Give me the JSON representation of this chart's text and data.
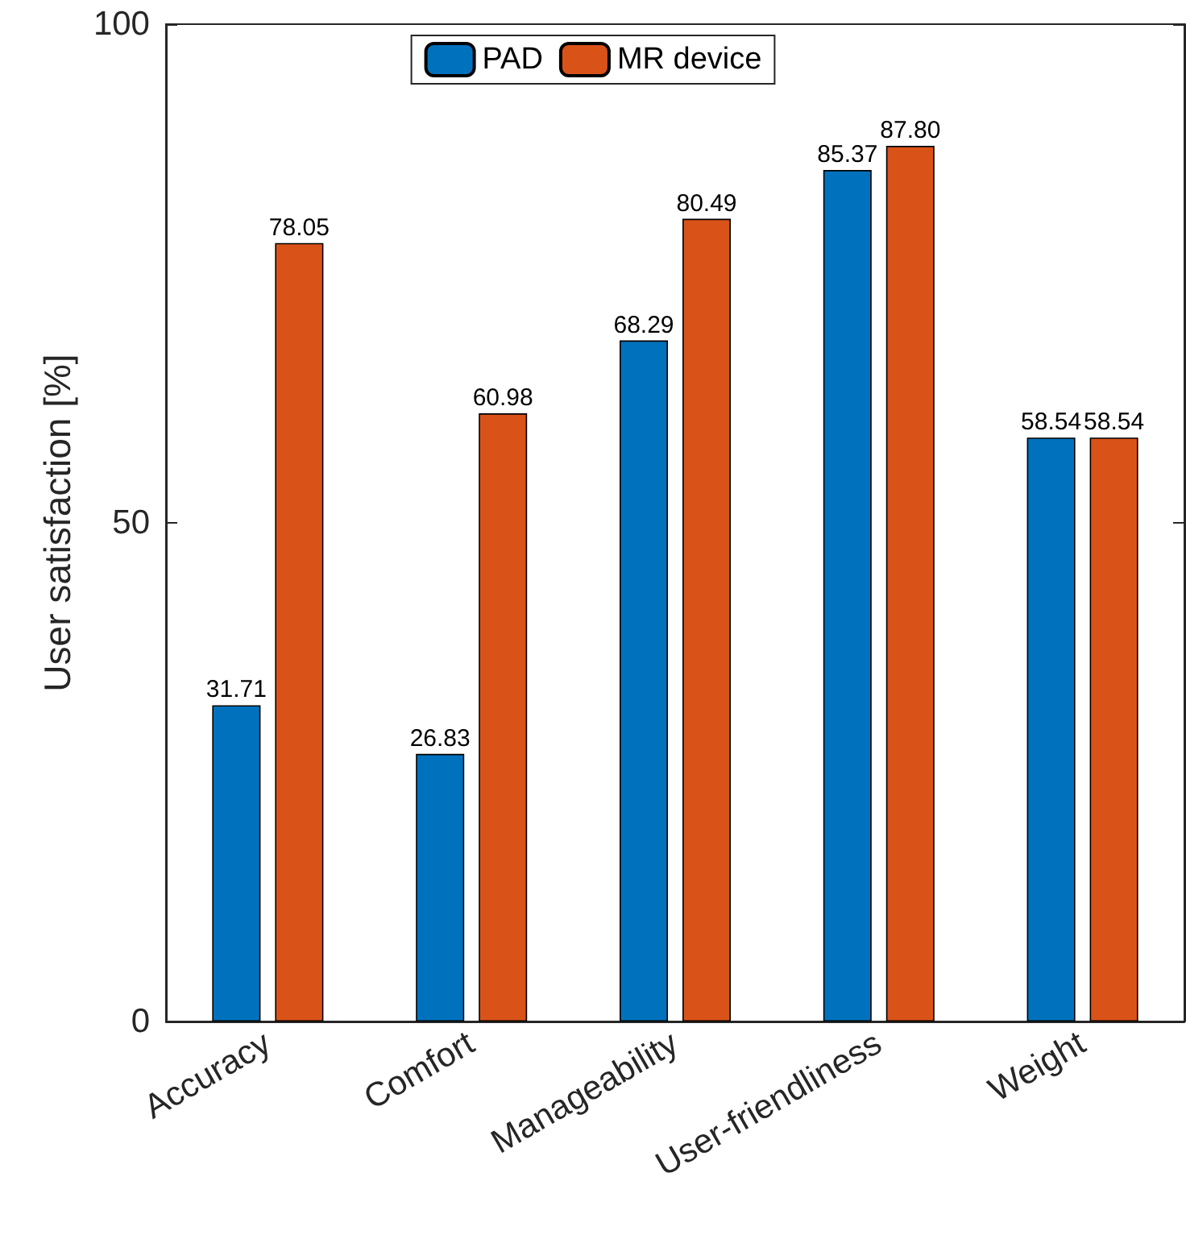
{
  "chart_data": {
    "type": "bar",
    "ylabel": "User satisfaction [%]",
    "categories": [
      "Accuracy",
      "Comfort",
      "Manageability",
      "User-friendliness",
      "Weight"
    ],
    "series": [
      {
        "name": "PAD",
        "color": "#0072bd",
        "values": [
          31.71,
          26.83,
          68.29,
          85.37,
          58.54
        ],
        "value_labels": [
          "31.71",
          "26.83",
          "68.29",
          "85.37",
          "58.54"
        ]
      },
      {
        "name": "MR device",
        "color": "#d95319",
        "values": [
          78.05,
          60.98,
          80.49,
          87.8,
          58.54
        ],
        "value_labels": [
          "78.05",
          "60.98",
          "80.49",
          "87.80",
          "58.54"
        ]
      }
    ],
    "ylim": [
      0,
      100
    ],
    "yticks": [
      0,
      50,
      100
    ],
    "grid": false,
    "legend": "top"
  }
}
